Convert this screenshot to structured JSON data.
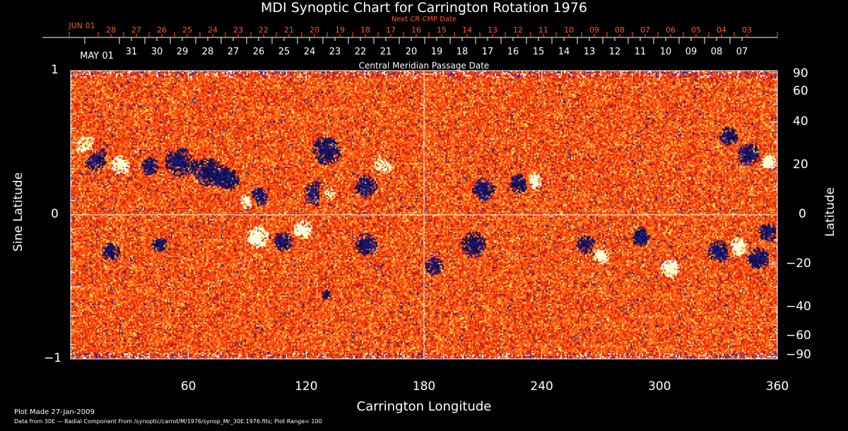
{
  "chart_data": {
    "type": "heatmap",
    "title": "MDI Synoptic Chart for Carrington Rotation 1976",
    "xlabel": "Carrington Longitude",
    "ylabel_left": "Sine Latitude",
    "ylabel_right": "Latitude",
    "xlim": [
      0,
      360
    ],
    "ylim": [
      -1,
      1
    ],
    "x_ticks": [
      "60",
      "120",
      "180",
      "240",
      "300",
      "360"
    ],
    "y_ticks_left": [
      "1",
      "0",
      "−1"
    ],
    "y_ticks_right": [
      "90",
      "60",
      "40",
      "20",
      "0",
      "−20",
      "−40",
      "−60",
      "−90"
    ],
    "top_axis_next": {
      "label": "Next CR CMP Date",
      "ticks": [
        "JUN 01",
        "28",
        "27",
        "26",
        "25",
        "24",
        "23",
        "22",
        "21",
        "20",
        "19",
        "18",
        "17",
        "16",
        "15",
        "14",
        "13",
        "12",
        "11",
        "10",
        "09",
        "08",
        "07",
        "06",
        "05",
        "04",
        "03"
      ]
    },
    "top_axis_cmp": {
      "label": "Central Meridian Passage Date",
      "ticks": [
        "MAY 01",
        "31",
        "30",
        "29",
        "28",
        "27",
        "26",
        "25",
        "24",
        "23",
        "22",
        "21",
        "20",
        "19",
        "18",
        "17",
        "16",
        "15",
        "14",
        "13",
        "12",
        "11",
        "10",
        "09",
        "08",
        "07"
      ]
    },
    "plot_range": 100,
    "colors": {
      "positive": "#ffffff",
      "negative": "#101050",
      "background": "#ff5a10"
    }
  },
  "footer": {
    "plot_made": "Plot Made 27-Jan-2009",
    "data_from": "Data from 30E — Radial Component From /synoptic/carrot/M/1976/synop_Mr_30E.1976.fits; Plot Range=   100"
  }
}
